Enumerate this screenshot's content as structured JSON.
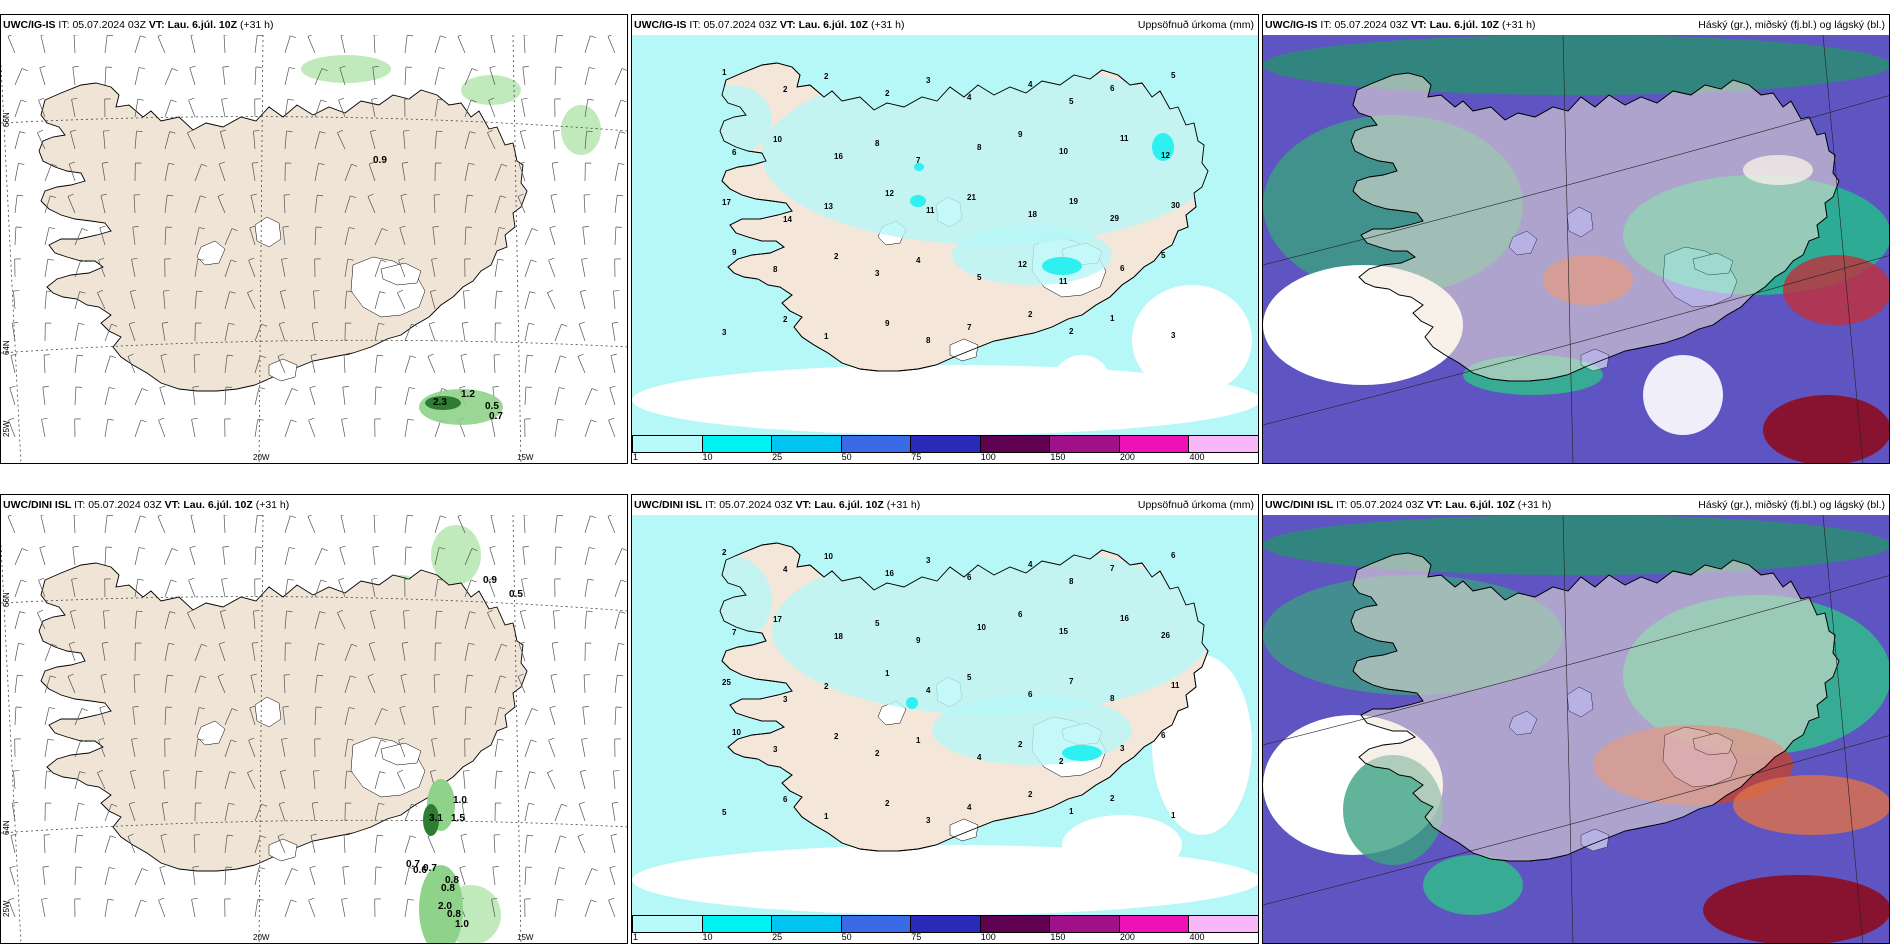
{
  "rows": [
    {
      "model": "UWC/IG-IS",
      "it_label": "IT:",
      "it_value": "05.07.2024 03Z",
      "vt_label": "VT:",
      "vt_value": "Lau. 6.júl. 10Z",
      "lead": "(+31 h)",
      "wind_values": [
        "0.9",
        "2.3",
        "1.2",
        "0.5",
        "0.7"
      ],
      "precip_values": [
        "1",
        "2",
        "2",
        "2",
        "3",
        "4",
        "4",
        "5",
        "6",
        "5",
        "6",
        "10",
        "16",
        "8",
        "7",
        "8",
        "9",
        "10",
        "11",
        "12",
        "17",
        "14",
        "13",
        "12",
        "11",
        "21",
        "18",
        "19",
        "29",
        "30",
        "9",
        "8",
        "2",
        "3",
        "4",
        "5",
        "12",
        "11",
        "6",
        "5",
        "3",
        "2",
        "1",
        "9",
        "8",
        "7",
        "2",
        "2",
        "1",
        "3"
      ]
    },
    {
      "model": "UWC/DINI ISL",
      "it_label": "IT:",
      "it_value": "05.07.2024 03Z",
      "vt_label": "VT:",
      "vt_value": "Lau. 6.júl. 10Z",
      "lead": "(+31 h)",
      "wind_values": [
        "0.9",
        "0.5",
        "1.0",
        "3.1",
        "1.5",
        "0.7",
        "0.6",
        "0.7",
        "0.8",
        "0.8",
        "2.0",
        "0.8",
        "1.0"
      ],
      "precip_values": [
        "2",
        "4",
        "10",
        "16",
        "3",
        "6",
        "4",
        "8",
        "7",
        "6",
        "7",
        "17",
        "18",
        "5",
        "9",
        "10",
        "6",
        "15",
        "16",
        "26",
        "25",
        "3",
        "2",
        "1",
        "4",
        "5",
        "6",
        "7",
        "8",
        "11",
        "10",
        "3",
        "2",
        "2",
        "1",
        "4",
        "2",
        "2",
        "3",
        "6",
        "5",
        "6",
        "1",
        "2",
        "3",
        "4",
        "2",
        "1",
        "2",
        "1"
      ]
    }
  ],
  "grid_labels": {
    "lat_66": "66N",
    "lat_64": "64N",
    "lat_25w": "25W",
    "lon_20w": "20W",
    "lon_15w": "15W"
  },
  "precip_title": "Uppsöfnuð úrkoma (mm)",
  "cloud_title": "Háský (gr.), miðský (fj.bl.) og lágský (bl.)",
  "colorbar": {
    "labels": [
      "1",
      "10",
      "25",
      "50",
      "75",
      "100",
      "150",
      "200",
      "400"
    ],
    "colors": [
      "#b8fafa",
      "#00f2f2",
      "#00c4f0",
      "#3a6ae6",
      "#2a2ab8",
      "#600050",
      "#a0108a",
      "#f010b8",
      "#f8b8f8"
    ]
  }
}
